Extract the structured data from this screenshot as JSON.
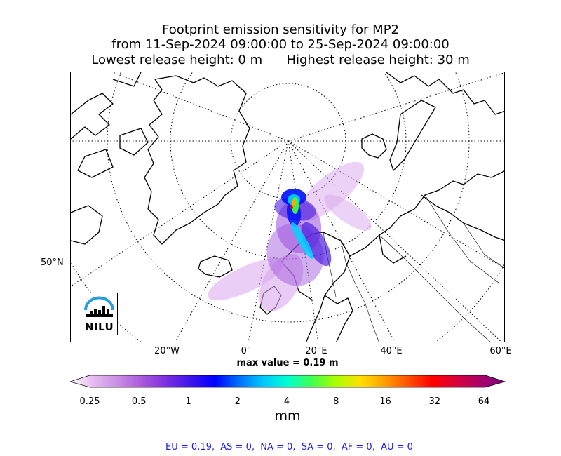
{
  "title": {
    "line1": "Footprint emission sensitivity for MP2",
    "line2": "from 11-Sep-2024 09:00:00 to 25-Sep-2024 09:00:00",
    "line3": "Lowest release height: 0 m      Highest release height: 30 m"
  },
  "map": {
    "projection": "north polar stereographic",
    "gridlines": "dotted",
    "lon_labels": [
      "20°W",
      "0°",
      "20°E",
      "40°E",
      "60°E"
    ],
    "lat_labels": [
      "50°N"
    ],
    "logo_text": "NILU",
    "plume_colors": [
      "#d9a6ee",
      "#9b4fdd",
      "#4b1fe0",
      "#0010ff",
      "#00d4ff",
      "#3cff40",
      "#ffa800",
      "#ff0000"
    ]
  },
  "max_value_label": "max value = 0.19 m",
  "colorbar": {
    "tick_labels": [
      "0.25",
      "0.5",
      "1",
      "2",
      "4",
      "8",
      "16",
      "32",
      "64"
    ],
    "unit": "mm",
    "colors": [
      "#ffffff",
      "#e4b8ef",
      "#c98ce3",
      "#a957dc",
      "#7a2ee0",
      "#3b14ea",
      "#0000ff",
      "#0070ff",
      "#00c8ff",
      "#00ffd0",
      "#40ff50",
      "#a8ff00",
      "#ffe000",
      "#ffa000",
      "#ff5000",
      "#ff0000",
      "#d8003a",
      "#a8006a",
      "#800080"
    ]
  },
  "region_totals": "EU = 0.19,  AS = 0,  NA = 0,  SA = 0,  AF = 0,  AU = 0"
}
